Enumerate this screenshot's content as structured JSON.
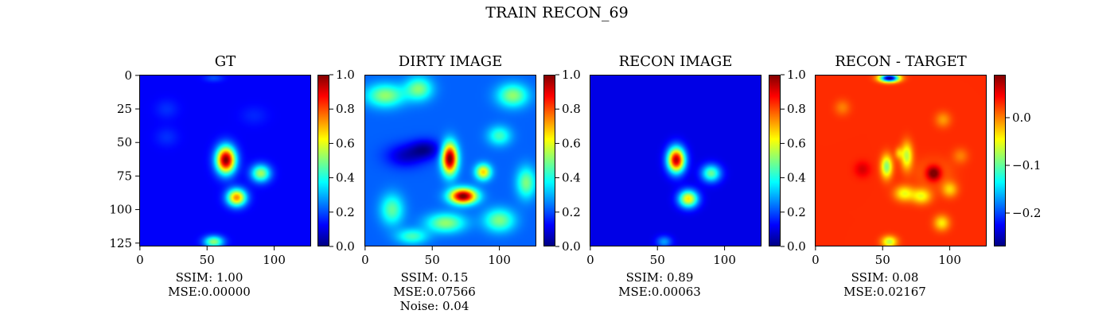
{
  "suptitle": "TRAIN RECON_69",
  "colors": {
    "colormap": "jet",
    "jet_stops": [
      "#00007f",
      "#0000ff",
      "#007fff",
      "#00ffff",
      "#7fff7f",
      "#ffff00",
      "#ff7f00",
      "#ff0000",
      "#7f0000"
    ]
  },
  "chart_data": [
    {
      "type": "heatmap",
      "title": "GT",
      "colormap": "jet",
      "image_size": 128,
      "xlim": [
        0,
        128
      ],
      "ylim": [
        128,
        0
      ],
      "xticks": [
        "0",
        "50",
        "100"
      ],
      "yticks": [
        "0",
        "25",
        "50",
        "75",
        "100",
        "125"
      ],
      "colorbar": {
        "range": [
          0.0,
          1.0
        ],
        "ticks": [
          "0.0",
          "0.2",
          "0.4",
          "0.6",
          "0.8",
          "1.0"
        ]
      },
      "background": 0.12,
      "blobs": [
        {
          "x": 64,
          "y": 63,
          "sx": 5,
          "sy": 7,
          "amp": 0.88
        },
        {
          "x": 72,
          "y": 91,
          "sx": 5,
          "sy": 4.5,
          "amp": 0.62
        },
        {
          "x": 90,
          "y": 73,
          "sx": 5,
          "sy": 4.5,
          "amp": 0.42
        },
        {
          "x": 55,
          "y": 124,
          "sx": 5,
          "sy": 3,
          "amp": 0.4
        },
        {
          "x": 55,
          "y": 2,
          "sx": 5,
          "sy": 2,
          "amp": 0.08
        },
        {
          "x": 20,
          "y": 25,
          "sx": 6,
          "sy": 5,
          "amp": 0.05
        },
        {
          "x": 20,
          "y": 46,
          "sx": 6,
          "sy": 5,
          "amp": 0.05
        },
        {
          "x": 85,
          "y": 30,
          "sx": 7,
          "sy": 5,
          "amp": 0.04
        }
      ],
      "caption": [
        "SSIM: 1.00",
        "MSE:0.00000"
      ]
    },
    {
      "type": "heatmap",
      "title": "DIRTY IMAGE",
      "colormap": "jet",
      "image_size": 128,
      "xlim": [
        0,
        128
      ],
      "ylim": [
        128,
        0
      ],
      "xticks": [
        "0",
        "50",
        "100"
      ],
      "yticks": [],
      "colorbar": {
        "range": [
          0.0,
          1.0
        ],
        "ticks": [
          "0.0",
          "0.2",
          "0.4",
          "0.6",
          "0.8",
          "1.0"
        ]
      },
      "background": 0.22,
      "blobs": [
        {
          "x": 63,
          "y": 62,
          "sx": 4,
          "sy": 8,
          "amp": 0.8
        },
        {
          "x": 73,
          "y": 90,
          "sx": 7,
          "sy": 4,
          "amp": 0.8
        },
        {
          "x": 88,
          "y": 72,
          "sx": 4,
          "sy": 4,
          "amp": 0.45
        },
        {
          "x": 15,
          "y": 15,
          "sx": 10,
          "sy": 6,
          "amp": 0.3
        },
        {
          "x": 40,
          "y": 10,
          "sx": 7,
          "sy": 6,
          "amp": 0.28
        },
        {
          "x": 110,
          "y": 15,
          "sx": 8,
          "sy": 6,
          "amp": 0.3
        },
        {
          "x": 100,
          "y": 45,
          "sx": 6,
          "sy": 5,
          "amp": 0.22
        },
        {
          "x": 60,
          "y": 110,
          "sx": 10,
          "sy": 5,
          "amp": 0.3
        },
        {
          "x": 100,
          "y": 108,
          "sx": 8,
          "sy": 6,
          "amp": 0.28
        },
        {
          "x": 20,
          "y": 100,
          "sx": 6,
          "sy": 8,
          "amp": 0.25
        },
        {
          "x": 35,
          "y": 120,
          "sx": 8,
          "sy": 4,
          "amp": 0.22
        },
        {
          "x": 120,
          "y": 80,
          "sx": 5,
          "sy": 8,
          "amp": 0.28
        },
        {
          "x": 45,
          "y": 55,
          "sx": 8,
          "sy": 5,
          "amp": -0.18
        },
        {
          "x": 30,
          "y": 60,
          "sx": 10,
          "sy": 6,
          "amp": -0.15
        }
      ],
      "caption": [
        "SSIM: 0.15",
        "MSE:0.07566",
        "Noise: 0.04"
      ]
    },
    {
      "type": "heatmap",
      "title": "RECON IMAGE",
      "colormap": "jet",
      "image_size": 128,
      "xlim": [
        0,
        128
      ],
      "ylim": [
        128,
        0
      ],
      "xticks": [
        "0",
        "50",
        "100"
      ],
      "yticks": [],
      "colorbar": {
        "range": [
          0.0,
          1.0
        ],
        "ticks": [
          "0.0",
          "0.2",
          "0.4",
          "0.6",
          "0.8",
          "1.0"
        ]
      },
      "background": 0.1,
      "blobs": [
        {
          "x": 64,
          "y": 63,
          "sx": 4.5,
          "sy": 6.5,
          "amp": 0.85
        },
        {
          "x": 73,
          "y": 92,
          "sx": 5,
          "sy": 4.5,
          "amp": 0.55
        },
        {
          "x": 90,
          "y": 73,
          "sx": 5,
          "sy": 4.5,
          "amp": 0.38
        },
        {
          "x": 55,
          "y": 124,
          "sx": 4,
          "sy": 3,
          "amp": 0.18
        }
      ],
      "caption": [
        "SSIM: 0.89",
        "MSE:0.00063"
      ]
    },
    {
      "type": "heatmap",
      "title": "RECON - TARGET",
      "colormap": "jet",
      "image_size": 128,
      "xlim": [
        0,
        128
      ],
      "ylim": [
        128,
        0
      ],
      "xticks": [
        "0",
        "50",
        "100"
      ],
      "yticks": [],
      "colorbar": {
        "range": [
          -0.27,
          0.09
        ],
        "ticks": [
          "−0.2",
          "−0.1",
          "0.0"
        ],
        "tick_values": [
          -0.2,
          -0.1,
          0.0
        ]
      },
      "background": 0.03,
      "blobs": [
        {
          "x": 55,
          "y": 2,
          "sx": 5,
          "sy": 2,
          "amp": -0.3
        },
        {
          "x": 88,
          "y": 73,
          "sx": 4,
          "sy": 4,
          "amp": 0.1
        },
        {
          "x": 88,
          "y": 73,
          "sx": 9,
          "sy": 7,
          "amp": -0.03
        },
        {
          "x": 53,
          "y": 68,
          "sx": 3,
          "sy": 6,
          "amp": -0.12
        },
        {
          "x": 68,
          "y": 60,
          "sx": 3,
          "sy": 7,
          "amp": -0.1
        },
        {
          "x": 62,
          "y": 58,
          "sx": 2,
          "sy": 3,
          "amp": -0.05
        },
        {
          "x": 66,
          "y": 88,
          "sx": 5,
          "sy": 4,
          "amp": -0.08
        },
        {
          "x": 79,
          "y": 90,
          "sx": 5,
          "sy": 4,
          "amp": -0.08
        },
        {
          "x": 100,
          "y": 85,
          "sx": 4,
          "sy": 4,
          "amp": -0.06
        },
        {
          "x": 94,
          "y": 110,
          "sx": 4,
          "sy": 4,
          "amp": -0.07
        },
        {
          "x": 55,
          "y": 124,
          "sx": 4,
          "sy": 3,
          "amp": -0.1
        },
        {
          "x": 95,
          "y": 33,
          "sx": 4,
          "sy": 4,
          "amp": -0.04
        },
        {
          "x": 20,
          "y": 24,
          "sx": 4,
          "sy": 4,
          "amp": -0.03
        },
        {
          "x": 108,
          "y": 60,
          "sx": 4,
          "sy": 4,
          "amp": -0.03
        },
        {
          "x": 35,
          "y": 70,
          "sx": 4,
          "sy": 4,
          "amp": 0.03
        }
      ],
      "caption": [
        "SSIM: 0.08",
        "MSE:0.02167"
      ]
    }
  ]
}
